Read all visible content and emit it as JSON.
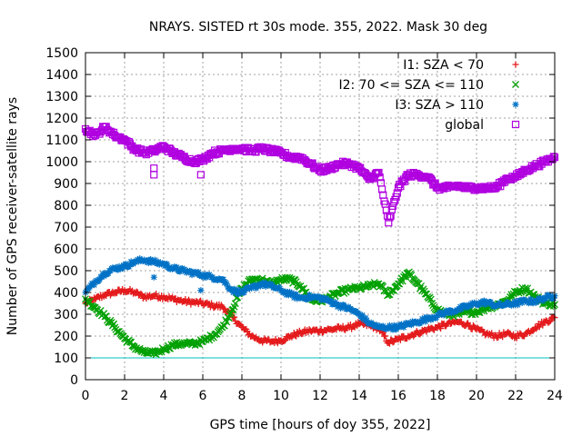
{
  "chart_data": {
    "type": "scatter",
    "title": "NRAYS. SISTED rt 30s mode. 355, 2022. Mask 30 deg",
    "xlabel": "GPS time [hours of doy 355, 2022]",
    "ylabel": "Number of GPS receiver-satellite rays",
    "xlim": [
      0,
      24
    ],
    "ylim": [
      0,
      1500
    ],
    "xticks": [
      0,
      2,
      4,
      6,
      8,
      10,
      12,
      14,
      16,
      18,
      20,
      22,
      24
    ],
    "yticks": [
      0,
      100,
      200,
      300,
      400,
      500,
      600,
      700,
      800,
      900,
      1000,
      1100,
      1200,
      1300,
      1400,
      1500
    ],
    "grid": true,
    "legend_position": "top-right",
    "reference_line": {
      "y": 100,
      "color": "#00c0c0"
    },
    "series": [
      {
        "name": "I1: SZA < 70",
        "marker": "+",
        "color": "#e41a1c",
        "x": [
          0,
          0.5,
          1,
          1.5,
          2,
          2.5,
          3,
          3.5,
          4,
          4.5,
          5,
          5.5,
          6,
          6.5,
          7,
          7.5,
          8,
          8.5,
          9,
          9.5,
          10,
          10.5,
          11,
          11.5,
          12,
          12.5,
          13,
          13.5,
          14,
          14.5,
          15,
          15.5,
          16,
          16.5,
          17,
          17.5,
          18,
          18.5,
          19,
          19.5,
          20,
          20.5,
          21,
          21.5,
          22,
          22.5,
          23,
          23.5,
          24
        ],
        "y": [
          350,
          370,
          390,
          400,
          410,
          400,
          380,
          385,
          380,
          370,
          360,
          355,
          350,
          340,
          335,
          290,
          240,
          200,
          180,
          175,
          180,
          200,
          215,
          225,
          225,
          230,
          235,
          240,
          255,
          250,
          235,
          170,
          185,
          200,
          215,
          230,
          240,
          255,
          265,
          255,
          230,
          210,
          200,
          210,
          200,
          210,
          240,
          265,
          285
        ]
      },
      {
        "name": "I2: 70 <= SZA <= 110",
        "marker": "x",
        "color": "#00a000",
        "x": [
          0,
          0.5,
          1,
          1.5,
          2,
          2.5,
          3,
          3.5,
          4,
          4.5,
          5,
          5.5,
          6,
          6.5,
          7,
          7.5,
          8,
          8.5,
          9,
          9.5,
          10,
          10.5,
          11,
          11.5,
          12,
          12.5,
          13,
          13.5,
          14,
          14.5,
          15,
          15.5,
          16,
          16.5,
          17,
          17.5,
          18,
          18.5,
          19,
          19.5,
          20,
          20.5,
          21,
          21.5,
          22,
          22.5,
          23,
          23.5,
          24
        ],
        "y": [
          370,
          330,
          290,
          240,
          190,
          150,
          125,
          120,
          140,
          160,
          165,
          165,
          175,
          200,
          240,
          320,
          420,
          460,
          460,
          440,
          460,
          460,
          430,
          370,
          360,
          380,
          400,
          415,
          420,
          430,
          440,
          390,
          440,
          490,
          440,
          380,
          320,
          300,
          300,
          310,
          310,
          330,
          340,
          360,
          400,
          420,
          380,
          350,
          345
        ]
      },
      {
        "name": "I3: SZA > 110",
        "marker": "*",
        "color": "#0072c6",
        "x": [
          0,
          0.5,
          1,
          1.5,
          2,
          2.5,
          3,
          3.5,
          4,
          4.5,
          5,
          5.5,
          6,
          6.5,
          7,
          7.5,
          8,
          8.5,
          9,
          9.5,
          10,
          10.5,
          11,
          11.5,
          12,
          12.5,
          13,
          13.5,
          14,
          14.5,
          15,
          15.5,
          16,
          16.5,
          17,
          17.5,
          18,
          18.5,
          19,
          19.5,
          20,
          20.5,
          21,
          21.5,
          22,
          22.5,
          23,
          23.5,
          24
        ],
        "y": [
          400,
          450,
          490,
          510,
          520,
          540,
          550,
          540,
          530,
          510,
          500,
          490,
          480,
          470,
          460,
          410,
          400,
          420,
          440,
          430,
          410,
          390,
          375,
          380,
          375,
          360,
          340,
          325,
          300,
          260,
          240,
          240,
          240,
          255,
          265,
          280,
          295,
          310,
          320,
          335,
          350,
          355,
          340,
          345,
          350,
          360,
          360,
          375,
          385
        ]
      },
      {
        "name": "global",
        "marker": "square",
        "color": "#b000e0",
        "x": [
          0,
          0.5,
          1,
          1.5,
          2,
          2.5,
          3,
          3.5,
          4,
          4.5,
          5,
          5.5,
          6,
          6.5,
          7,
          7.5,
          8,
          8.5,
          9,
          9.5,
          10,
          10.5,
          11,
          11.5,
          12,
          12.5,
          13,
          13.5,
          14,
          14.5,
          15,
          15.5,
          16,
          16.5,
          17,
          17.5,
          18,
          18.5,
          19,
          19.5,
          20,
          20.5,
          21,
          21.5,
          22,
          22.5,
          23,
          23.5,
          24
        ],
        "y": [
          1150,
          1120,
          1160,
          1120,
          1100,
          1060,
          1040,
          1050,
          1070,
          1040,
          1020,
          1000,
          1010,
          1040,
          1050,
          1060,
          1060,
          1050,
          1060,
          1050,
          1040,
          1020,
          1020,
          990,
          960,
          970,
          990,
          990,
          970,
          920,
          950,
          720,
          880,
          940,
          940,
          930,
          880,
          880,
          890,
          880,
          880,
          880,
          880,
          920,
          930,
          960,
          980,
          1000,
          1020
        ]
      }
    ],
    "outliers": [
      {
        "series": "global",
        "x": 3.5,
        "y": 940
      },
      {
        "series": "global",
        "x": 3.5,
        "y": 970
      },
      {
        "series": "global",
        "x": 5.9,
        "y": 940
      },
      {
        "series": "I3: SZA > 110",
        "x": 3.5,
        "y": 470
      },
      {
        "series": "I3: SZA > 110",
        "x": 5.9,
        "y": 410
      }
    ]
  }
}
